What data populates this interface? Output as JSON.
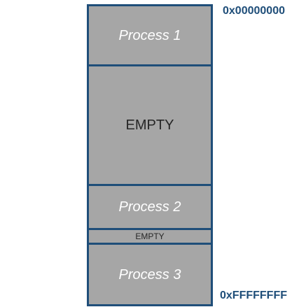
{
  "memory_map": {
    "segments": [
      {
        "label": "Process 1",
        "kind": "process"
      },
      {
        "label": "EMPTY",
        "kind": "empty"
      },
      {
        "label": "Process 2",
        "kind": "process"
      },
      {
        "label": "EMPTY",
        "kind": "empty"
      },
      {
        "label": "Process 3",
        "kind": "process"
      }
    ],
    "address_start": "0x00000000",
    "address_end": "0xFFFFFFFF"
  },
  "colors": {
    "process_fill": "#a6a6a6",
    "empty_fill": "#a6a6a6",
    "border": "#1f4e79",
    "process_text": "#ffffff",
    "empty_text": "#262626",
    "address_text": "#1f4e79"
  }
}
